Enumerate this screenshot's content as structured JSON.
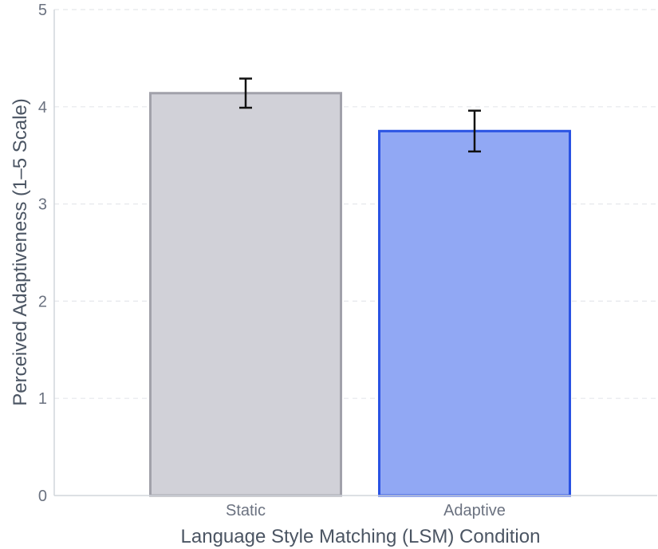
{
  "chart_data": {
    "type": "bar",
    "title": "",
    "xlabel": "Language Style Matching (LSM) Condition",
    "ylabel": "Perceived Adaptiveness (1–5 Scale)",
    "ylim": [
      0,
      5
    ],
    "yticks": [
      "0",
      "1",
      "2",
      "3",
      "4",
      "5"
    ],
    "grid": true,
    "categories": [
      "Static",
      "Adaptive"
    ],
    "values": [
      4.14,
      3.75
    ],
    "error": [
      0.15,
      0.21
    ],
    "colors": {
      "fills": [
        "#d1d1d8",
        "#91a8f4"
      ],
      "strokes": [
        "#a1a1aa",
        "#2952e3"
      ],
      "error_bar": "#111111"
    }
  }
}
